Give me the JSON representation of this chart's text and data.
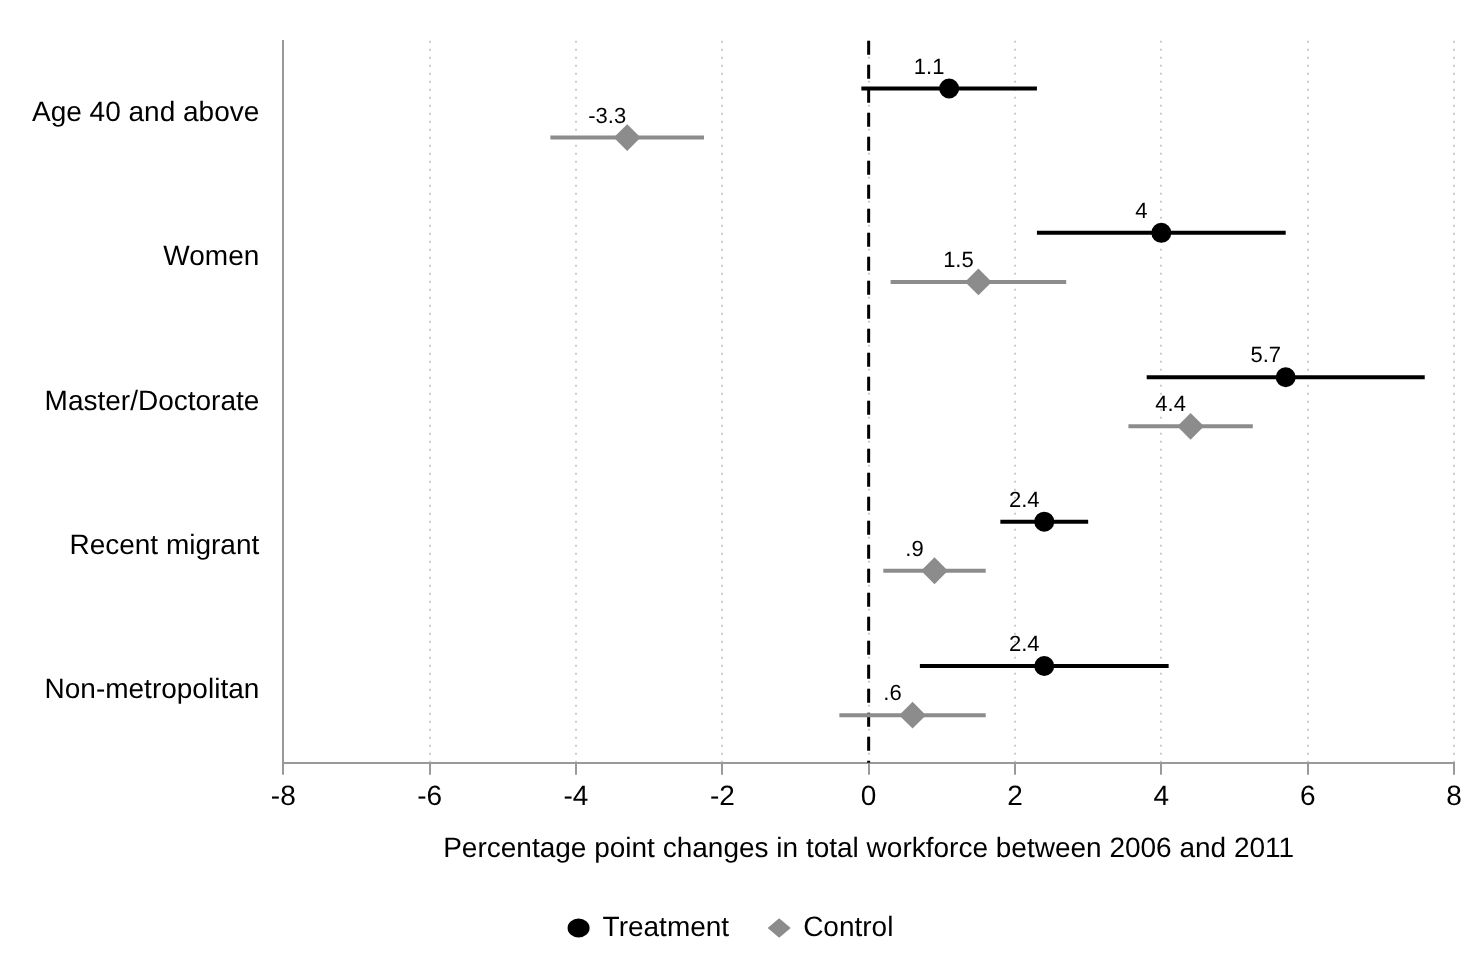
{
  "chart_data": {
    "type": "scatter",
    "orientation": "horizontal",
    "xlabel": "Percentage point changes in total workforce between 2006 and 2011",
    "categories": [
      "Age 40 and above",
      "Women",
      "Master/Doctorate",
      "Recent migrant",
      "Non-metropolitan"
    ],
    "series": [
      {
        "name": "Treatment",
        "color": "#000000",
        "marker": "circle",
        "values": [
          1.1,
          4,
          5.7,
          2.4,
          2.4
        ],
        "value_labels": [
          "1.1",
          "4",
          "5.7",
          "2.4",
          "2.4"
        ],
        "errors": [
          [
            -0.1,
            2.3
          ],
          [
            2.3,
            5.7
          ],
          [
            3.8,
            7.6
          ],
          [
            1.8,
            3.0
          ],
          [
            0.7,
            4.1
          ]
        ]
      },
      {
        "name": "Control",
        "color": "#8c8c8c",
        "marker": "diamond",
        "values": [
          -3.3,
          1.5,
          4.4,
          0.9,
          0.6
        ],
        "value_labels": [
          "-3.3",
          "1.5",
          "4.4",
          ".9",
          ".6"
        ],
        "errors": [
          [
            -4.35,
            -2.25
          ],
          [
            0.3,
            2.7
          ],
          [
            3.55,
            5.25
          ],
          [
            0.2,
            1.6
          ],
          [
            -0.4,
            1.6
          ]
        ]
      }
    ],
    "xlim": [
      -8,
      8
    ],
    "xticks": [
      -8,
      -6,
      -4,
      -2,
      0,
      2,
      4,
      6,
      8
    ],
    "grid": "x",
    "legend": "bottom",
    "ref_lines": [
      {
        "axis": "x",
        "value": 0,
        "color": "#000000",
        "line_style": "dashed"
      }
    ]
  }
}
